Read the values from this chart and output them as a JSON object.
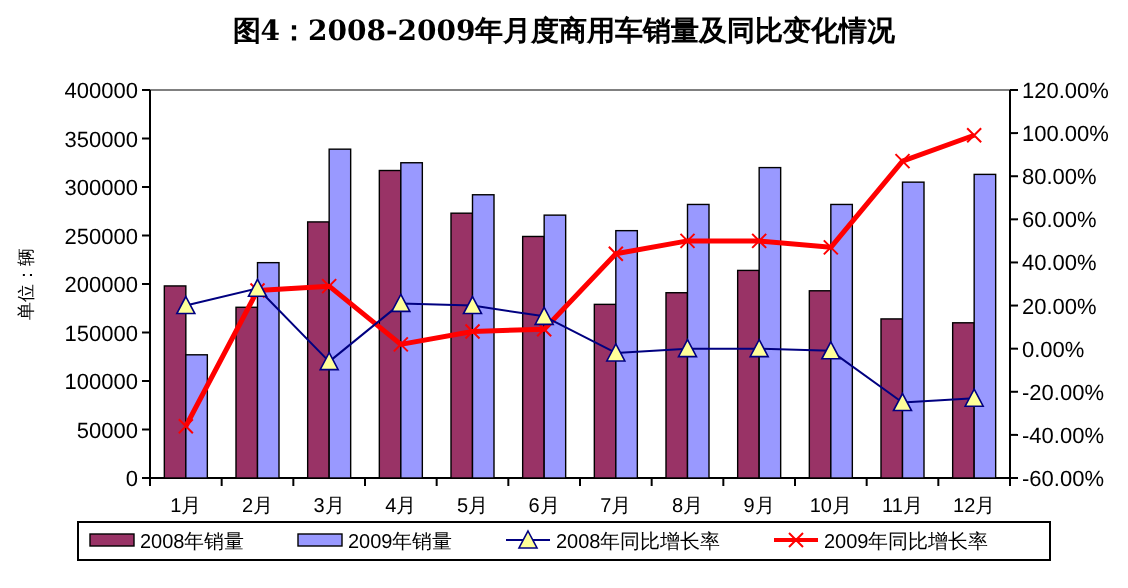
{
  "chart_data": {
    "type": "bar",
    "title": "图4：2008-2009年月度商用车销量及同比变化情况",
    "ylabel": "单位：辆",
    "categories": [
      "1月",
      "2月",
      "3月",
      "4月",
      "5月",
      "6月",
      "7月",
      "8月",
      "9月",
      "10月",
      "11月",
      "12月"
    ],
    "series": [
      {
        "name": "2008年销量",
        "color": "#993366",
        "values": [
          198000,
          176000,
          264000,
          317000,
          273000,
          249000,
          179000,
          191000,
          214000,
          193000,
          164000,
          160000
        ]
      },
      {
        "name": "2009年销量",
        "color": "#9999ff",
        "values": [
          127000,
          222000,
          339000,
          325000,
          292000,
          271000,
          255000,
          282000,
          320000,
          282000,
          305000,
          313000
        ]
      },
      {
        "name": "2008年同比增长率",
        "type": "line",
        "axis": "y2",
        "color": "#000080",
        "marker": "triangle",
        "values": [
          20,
          28,
          -6,
          21,
          20,
          15,
          -2,
          0,
          0,
          -1,
          -25,
          -23
        ]
      },
      {
        "name": "2009年同比增长率",
        "type": "line",
        "axis": "y2",
        "color": "#ff0000",
        "marker": "cross",
        "values": [
          -36,
          27,
          29,
          2,
          8,
          9,
          44,
          50,
          50,
          47,
          87,
          99
        ]
      }
    ],
    "ylim": [
      0,
      400000
    ],
    "yticks": [
      0,
      50000,
      100000,
      150000,
      200000,
      250000,
      300000,
      350000,
      400000
    ],
    "y2lim": [
      -60,
      120
    ],
    "y2ticks": [
      {
        "value": -60,
        "label": "-60.00%"
      },
      {
        "value": -40,
        "label": "-40.00%"
      },
      {
        "value": -20,
        "label": "-20.00%"
      },
      {
        "value": 0,
        "label": "0.00%"
      },
      {
        "value": 20,
        "label": "20.00%"
      },
      {
        "value": 40,
        "label": "40.00%"
      },
      {
        "value": 60,
        "label": "60.00%"
      },
      {
        "value": 80,
        "label": "80.00%"
      },
      {
        "value": 100,
        "label": "100.00%"
      },
      {
        "value": 120,
        "label": "120.00%"
      }
    ],
    "grid": false,
    "legend": "bottom"
  }
}
